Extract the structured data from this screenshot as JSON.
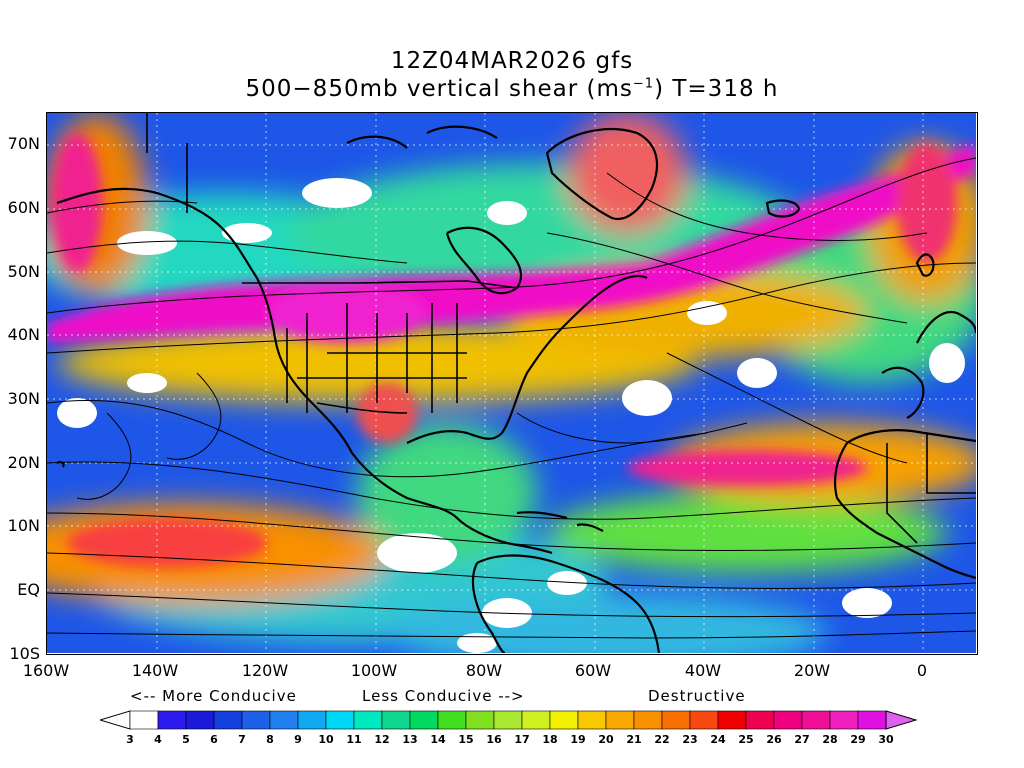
{
  "title_line1": "12Z04MAR2026 gfs",
  "title_line2_pre": "500−850mb vertical shear (ms",
  "title_line2_sup": "−1",
  "title_line2_post": ") T=318 h",
  "lat_labels": [
    "70N",
    "60N",
    "50N",
    "40N",
    "30N",
    "20N",
    "10N",
    "EQ",
    "10S"
  ],
  "lon_labels": [
    "160W",
    "140W",
    "120W",
    "100W",
    "80W",
    "60W",
    "40W",
    "20W",
    "0"
  ],
  "legend": {
    "more_conducive": "<-- More Conducive",
    "less_conducive": "Less Conducive -->",
    "destructive": "Destructive",
    "ticks": [
      "3",
      "4",
      "5",
      "6",
      "7",
      "8",
      "9",
      "10",
      "11",
      "12",
      "13",
      "14",
      "15",
      "16",
      "17",
      "18",
      "19",
      "20",
      "21",
      "22",
      "23",
      "24",
      "25",
      "26",
      "27",
      "28",
      "29",
      "30"
    ],
    "colors": [
      "#ffffff",
      "#2c1cf0",
      "#1a1ad8",
      "#1440e0",
      "#1e60ea",
      "#2080f0",
      "#10a8f0",
      "#00d8f8",
      "#00e8c0",
      "#10d890",
      "#00d860",
      "#40e020",
      "#80e020",
      "#a8e830",
      "#d0f020",
      "#f0f000",
      "#f8c800",
      "#f8a800",
      "#f89000",
      "#f87000",
      "#f84810",
      "#f00000",
      "#f00050",
      "#f00080",
      "#f01098",
      "#f020c0",
      "#e010e0"
    ],
    "left_arrow_color": "#ffffff",
    "right_arrow_color": "#e060f0"
  }
}
